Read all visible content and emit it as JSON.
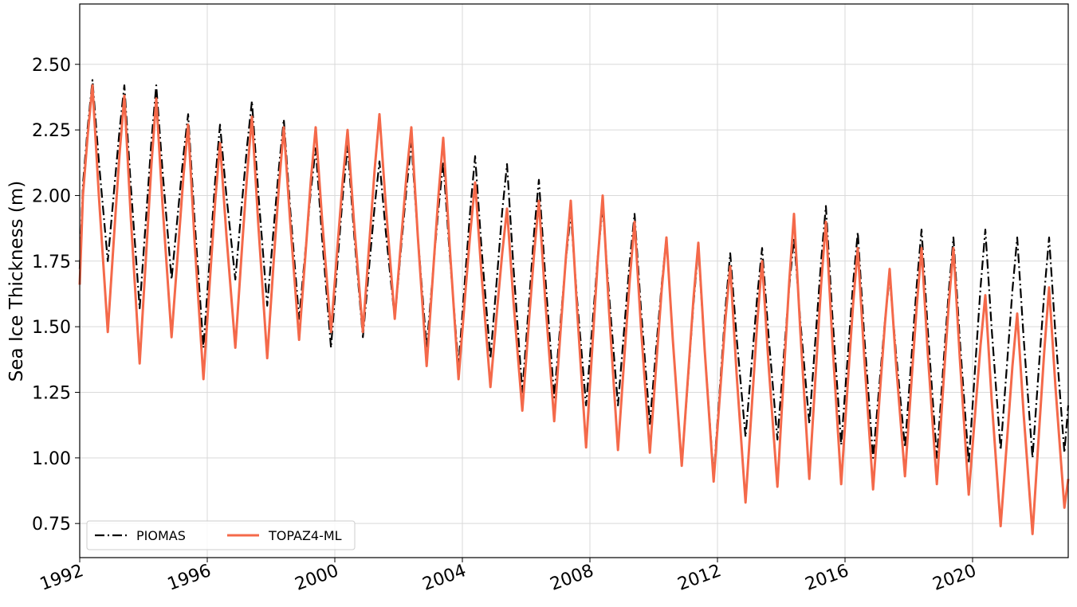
{
  "chart_data": {
    "type": "line",
    "ylabel": "Sea Ice Thickness (m)",
    "xlim": [
      1992,
      2023
    ],
    "xticks": [
      1992,
      1996,
      2000,
      2004,
      2008,
      2012,
      2016,
      2020
    ],
    "ylim": [
      0.62,
      2.73
    ],
    "yticks": [
      {
        "value": 0.75,
        "label": "0.75"
      },
      {
        "value": 1.0,
        "label": "1.00"
      },
      {
        "value": 1.25,
        "label": "1.25"
      },
      {
        "value": 1.5,
        "label": "1.50"
      },
      {
        "value": 1.75,
        "label": "1.75"
      },
      {
        "value": 2.0,
        "label": "2.00"
      },
      {
        "value": 2.25,
        "label": "2.25"
      },
      {
        "value": 2.5,
        "label": "2.50"
      }
    ],
    "grid": true,
    "legend": "lower left",
    "x": [
      1992,
      1992.1,
      1992.25,
      1992.4,
      1992.6,
      1992.88,
      1993.1,
      1993.25,
      1993.4,
      1993.6,
      1993.88,
      1994.1,
      1994.25,
      1994.4,
      1994.6,
      1994.88,
      1995.1,
      1995.25,
      1995.4,
      1995.6,
      1995.88,
      1996.1,
      1996.25,
      1996.4,
      1996.6,
      1996.88,
      1997.1,
      1997.25,
      1997.4,
      1997.6,
      1997.88,
      1998.1,
      1998.25,
      1998.4,
      1998.6,
      1998.88,
      1999.1,
      1999.25,
      1999.4,
      1999.6,
      1999.88,
      2000.1,
      2000.25,
      2000.4,
      2000.6,
      2000.88,
      2001.1,
      2001.25,
      2001.4,
      2001.6,
      2001.88,
      2002.1,
      2002.25,
      2002.4,
      2002.6,
      2002.88,
      2003.1,
      2003.25,
      2003.4,
      2003.6,
      2003.88,
      2004.1,
      2004.25,
      2004.4,
      2004.6,
      2004.88,
      2005.1,
      2005.25,
      2005.4,
      2005.6,
      2005.88,
      2006.1,
      2006.25,
      2006.4,
      2006.6,
      2006.88,
      2007.1,
      2007.25,
      2007.4,
      2007.6,
      2007.88,
      2008.1,
      2008.25,
      2008.4,
      2008.6,
      2008.88,
      2009.1,
      2009.25,
      2009.4,
      2009.6,
      2009.88,
      2010.1,
      2010.25,
      2010.4,
      2010.6,
      2010.88,
      2011.1,
      2011.25,
      2011.4,
      2011.6,
      2011.88,
      2012.1,
      2012.25,
      2012.4,
      2012.6,
      2012.88,
      2013.1,
      2013.25,
      2013.4,
      2013.6,
      2013.88,
      2014.1,
      2014.25,
      2014.4,
      2014.6,
      2014.88,
      2015.1,
      2015.25,
      2015.4,
      2015.6,
      2015.88,
      2016.1,
      2016.25,
      2016.4,
      2016.6,
      2016.88,
      2017.1,
      2017.25,
      2017.4,
      2017.6,
      2017.88,
      2018.1,
      2018.25,
      2018.4,
      2018.6,
      2018.88,
      2019.1,
      2019.25,
      2019.4,
      2019.6,
      2019.88,
      2020.1,
      2020.25,
      2020.4,
      2020.6,
      2020.88,
      2021.1,
      2021.25,
      2021.4,
      2021.6,
      2021.88,
      2022.1,
      2022.25,
      2022.4,
      2022.6,
      2022.88,
      2023
    ],
    "series": [
      {
        "name": "PIOMAS",
        "color": "#000000",
        "dash": "dashdot",
        "values": [
          1.72,
          2.04,
          2.26,
          2.44,
          2.13,
          1.75,
          2.05,
          2.25,
          2.42,
          2.04,
          1.57,
          1.95,
          2.21,
          2.42,
          2.09,
          1.68,
          1.96,
          2.15,
          2.31,
          1.91,
          1.42,
          1.8,
          2.06,
          2.27,
          2.0,
          1.68,
          1.99,
          2.19,
          2.36,
          2.01,
          1.58,
          1.9,
          2.11,
          2.29,
          1.95,
          1.53,
          1.82,
          2.02,
          2.18,
          1.84,
          1.42,
          1.77,
          2.0,
          2.19,
          1.86,
          1.46,
          1.76,
          1.96,
          2.13,
          1.86,
          1.53,
          1.83,
          2.03,
          2.2,
          1.85,
          1.42,
          1.74,
          1.95,
          2.13,
          1.78,
          1.35,
          1.71,
          1.95,
          2.15,
          1.8,
          1.38,
          1.71,
          1.94,
          2.12,
          1.73,
          1.25,
          1.61,
          1.86,
          2.06,
          1.69,
          1.23,
          1.55,
          1.76,
          1.93,
          1.6,
          1.2,
          1.54,
          1.77,
          1.96,
          1.62,
          1.2,
          1.53,
          1.75,
          1.93,
          1.57,
          1.13,
          1.45,
          1.66,
          1.84,
          1.45,
          0.97,
          1.34,
          1.59,
          1.8,
          1.41,
          0.93,
          1.31,
          1.57,
          1.78,
          1.46,
          1.08,
          1.4,
          1.62,
          1.8,
          1.47,
          1.07,
          1.42,
          1.65,
          1.84,
          1.52,
          1.13,
          1.5,
          1.75,
          1.96,
          1.55,
          1.05,
          1.41,
          1.66,
          1.86,
          1.47,
          1.0,
          1.31,
          1.52,
          1.69,
          1.4,
          1.04,
          1.41,
          1.66,
          1.87,
          1.48,
          1.0,
          1.38,
          1.63,
          1.84,
          1.45,
          0.98,
          1.38,
          1.65,
          1.87,
          1.49,
          1.03,
          1.39,
          1.64,
          1.84,
          1.46,
          1.0,
          1.38,
          1.63,
          1.84,
          1.47,
          1.02,
          1.2
        ]
      },
      {
        "name": "TOPAZ4-ML",
        "color": "#f4694a",
        "dash": "solid",
        "values": [
          1.66,
          2.0,
          2.23,
          2.42,
          2.0,
          1.48,
          1.89,
          2.16,
          2.38,
          1.92,
          1.36,
          1.81,
          2.12,
          2.37,
          1.96,
          1.46,
          1.82,
          2.07,
          2.27,
          1.83,
          1.3,
          1.71,
          1.98,
          2.2,
          1.85,
          1.42,
          1.82,
          2.08,
          2.3,
          1.89,
          1.38,
          1.78,
          2.04,
          2.26,
          1.9,
          1.45,
          1.81,
          2.06,
          2.26,
          1.91,
          1.48,
          1.83,
          2.06,
          2.25,
          1.9,
          1.48,
          1.85,
          2.1,
          2.31,
          1.96,
          1.53,
          1.86,
          2.08,
          2.26,
          1.85,
          1.35,
          1.74,
          2.0,
          2.22,
          1.81,
          1.3,
          1.64,
          1.86,
          2.05,
          1.7,
          1.27,
          1.58,
          1.78,
          1.95,
          1.6,
          1.18,
          1.54,
          1.78,
          1.98,
          1.6,
          1.14,
          1.52,
          1.77,
          1.98,
          1.56,
          1.04,
          1.47,
          1.76,
          2.0,
          1.56,
          1.03,
          1.42,
          1.68,
          1.9,
          1.5,
          1.02,
          1.39,
          1.64,
          1.84,
          1.45,
          0.97,
          1.35,
          1.61,
          1.82,
          1.41,
          0.91,
          1.28,
          1.53,
          1.73,
          1.32,
          0.83,
          1.24,
          1.52,
          1.75,
          1.36,
          0.89,
          1.36,
          1.67,
          1.93,
          1.48,
          0.92,
          1.36,
          1.66,
          1.9,
          1.45,
          0.9,
          1.31,
          1.58,
          1.8,
          1.39,
          0.88,
          1.26,
          1.51,
          1.72,
          1.36,
          0.93,
          1.32,
          1.58,
          1.8,
          1.39,
          0.9,
          1.31,
          1.58,
          1.8,
          1.38,
          0.86,
          1.2,
          1.43,
          1.62,
          1.22,
          0.74,
          1.1,
          1.35,
          1.55,
          1.17,
          0.71,
          1.13,
          1.41,
          1.65,
          1.27,
          0.81,
          0.92
        ]
      }
    ]
  }
}
